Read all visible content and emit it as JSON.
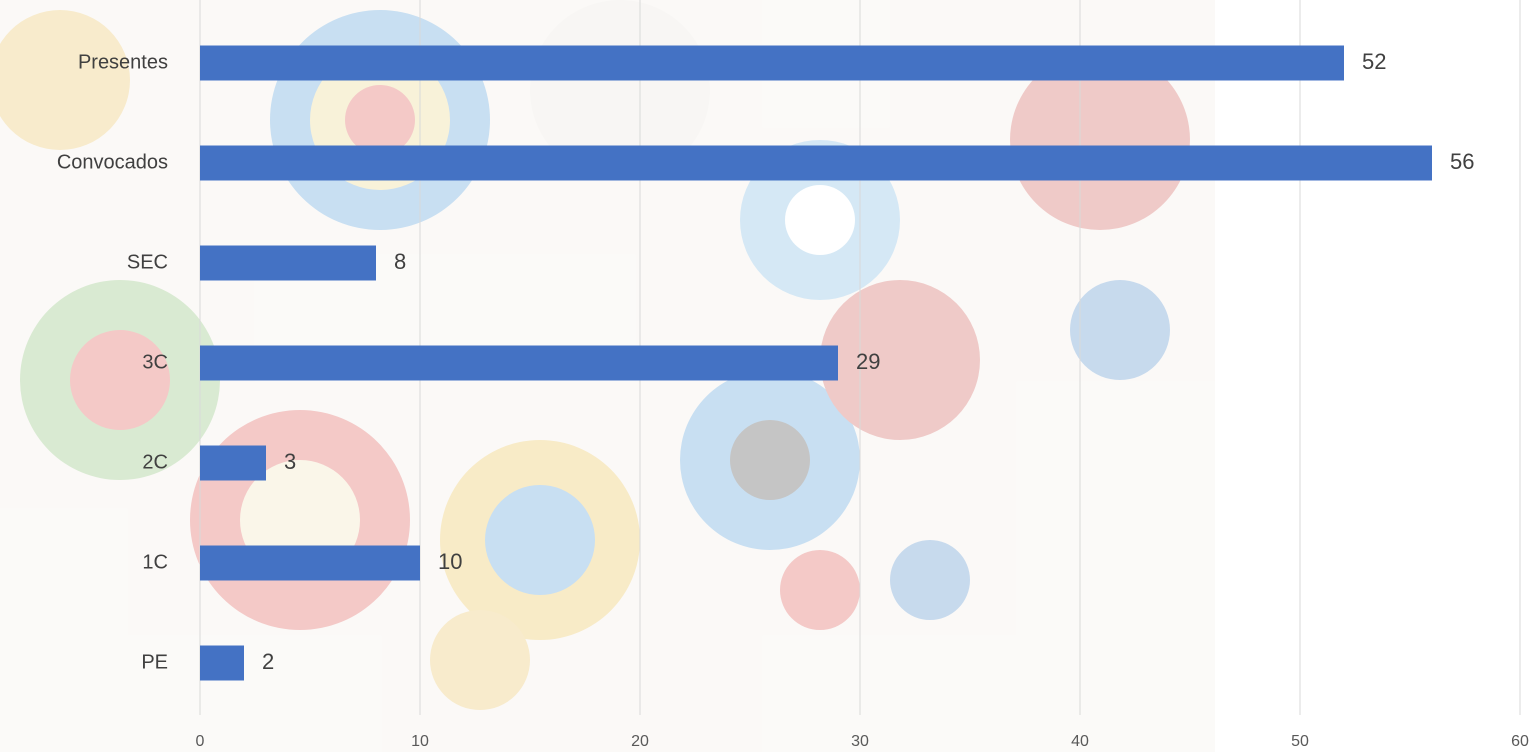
{
  "chart_data": {
    "type": "bar",
    "orientation": "horizontal",
    "categories": [
      "Presentes",
      "Convocados",
      "SEC",
      "3C",
      "2C",
      "1C",
      "PE"
    ],
    "values": [
      52,
      56,
      8,
      29,
      3,
      10,
      2
    ],
    "color": "#4472c4",
    "xlim": [
      0,
      60
    ],
    "xticks": [
      0,
      10,
      20,
      30,
      40,
      50,
      60
    ],
    "grid": true
  }
}
